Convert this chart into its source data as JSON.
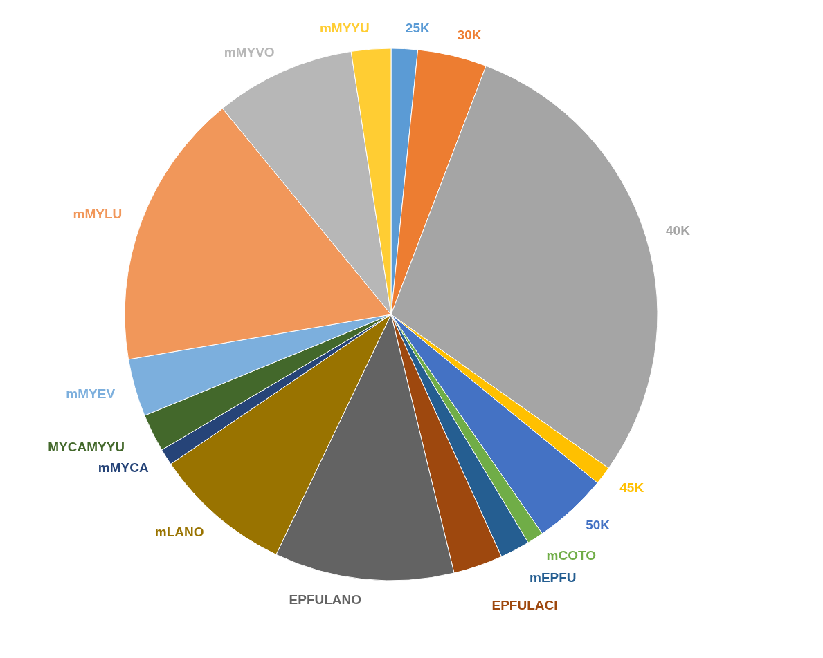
{
  "chart_data": {
    "type": "pie",
    "legend": false,
    "categories": [
      "25K",
      "30K",
      "40K",
      "45K",
      "50K",
      "mCOTO",
      "mEPFU",
      "EPFULACI",
      "EPFULANO",
      "mLANO",
      "mMYCA",
      "MYCAMYYU",
      "mMYEV",
      "mMYLU",
      "mMYVO",
      "mMYYU"
    ],
    "values": [
      1.6,
      4.2,
      29,
      1.1,
      4.5,
      1,
      1.8,
      3,
      10.9,
      8.4,
      1,
      2.3,
      3.5,
      16.8,
      8.5,
      2.4
    ],
    "colors": [
      "#5b9bd5",
      "#ed7d31",
      "#a5a5a5",
      "#ffc000",
      "#4472c4",
      "#70ad47",
      "#255e91",
      "#9e480e",
      "#636363",
      "#997300",
      "#264478",
      "#43682b",
      "#7cafdd",
      "#f1975a",
      "#b7b7b7",
      "#ffcd33"
    ]
  }
}
